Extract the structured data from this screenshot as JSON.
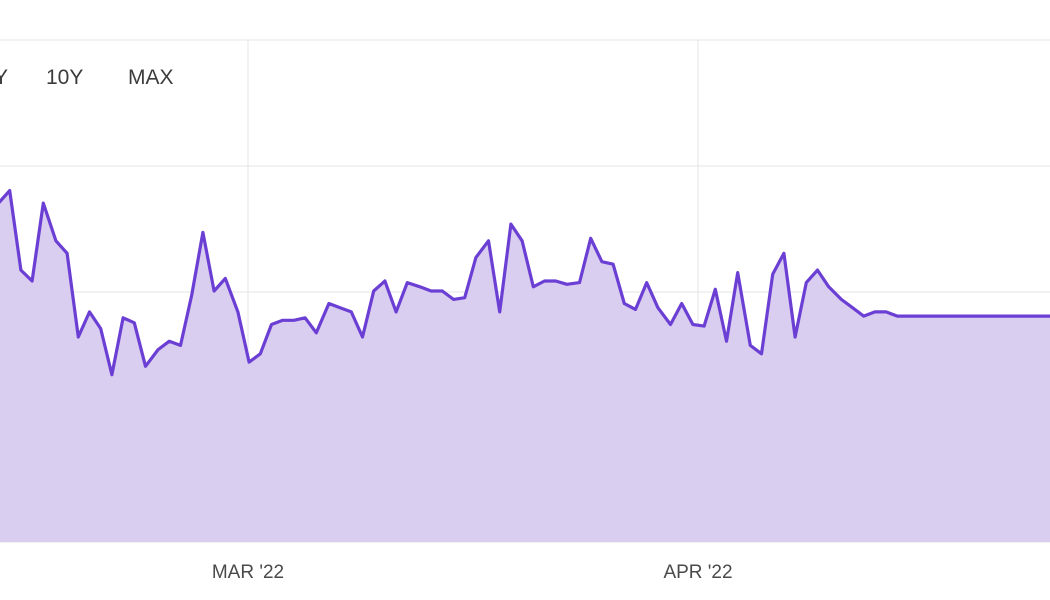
{
  "range_selector": {
    "options": [
      "Y",
      "10Y",
      "MAX"
    ]
  },
  "colors": {
    "line": "#6b3fd4",
    "fill": "#d9cdf0",
    "grid": "#e4e4e4",
    "tick_text": "#4a4a4a"
  },
  "chart_data": {
    "type": "area",
    "title": "",
    "xlabel": "",
    "ylabel": "",
    "x_ticks": [
      "MAR '22",
      "APR '22"
    ],
    "y_ticks_unlabeled": [
      1,
      2,
      3,
      4,
      5
    ],
    "grid": true,
    "legend": "none",
    "ylim": [
      0,
      6
    ],
    "series": [
      {
        "x": [
          0,
          0.08,
          0.16,
          0.24,
          0.32,
          0.41,
          0.49,
          0.57,
          0.65,
          0.73,
          0.81,
          0.89,
          0.97,
          1.05,
          1.14,
          1.22,
          1.3,
          1.38,
          1.46,
          1.54,
          1.62,
          1.71,
          1.79,
          1.87,
          1.95,
          2.03,
          2.11,
          2.19,
          2.27,
          2.36,
          2.44,
          2.52,
          2.6,
          2.68,
          2.76,
          2.84,
          2.92,
          3.01,
          3.09,
          3.17,
          3.25,
          3.33,
          3.41,
          3.5,
          3.58,
          3.66,
          3.74,
          3.82,
          3.9,
          3.98,
          4.06,
          4.15,
          4.23,
          4.31,
          4.39,
          4.47,
          4.55,
          4.63,
          4.71,
          4.8,
          4.88,
          4.96,
          5.04,
          5.12,
          5.2,
          5.28,
          5.37,
          5.45,
          5.53,
          5.61,
          5.69,
          5.77,
          5.85,
          5.93,
          6.02,
          6.1,
          6.18,
          6.26,
          6.34,
          6.42,
          6.5,
          6.59,
          6.67,
          6.75,
          6.83,
          6.91,
          6.99,
          7.07,
          7.15,
          7.24,
          7.32,
          7.4,
          7.48,
          7.56
        ],
        "values": [
          4.05,
          4.2,
          3.25,
          3.12,
          4.05,
          3.6,
          3.45,
          2.45,
          2.75,
          2.55,
          2.0,
          2.68,
          2.62,
          2.1,
          2.3,
          2.4,
          2.35,
          2.95,
          3.7,
          3.0,
          3.15,
          2.75,
          2.15,
          2.25,
          2.6,
          2.65,
          2.65,
          2.68,
          2.5,
          2.85,
          2.8,
          2.75,
          2.45,
          3.0,
          3.12,
          2.75,
          3.1,
          3.05,
          3.0,
          3.0,
          2.9,
          2.92,
          3.4,
          3.6,
          2.75,
          3.8,
          3.6,
          3.05,
          3.12,
          3.12,
          3.08,
          3.1,
          3.63,
          3.35,
          3.32,
          2.85,
          2.78,
          3.1,
          2.8,
          2.6,
          2.85,
          2.6,
          2.58,
          3.02,
          2.4,
          3.22,
          2.35,
          2.25,
          3.2,
          3.45,
          2.45,
          3.1,
          3.25,
          3.05,
          2.9,
          2.8,
          2.7,
          2.75,
          2.75,
          2.7,
          2.7,
          2.7,
          2.7,
          2.7,
          2.7,
          2.7,
          2.7,
          2.7,
          2.7,
          2.7,
          2.7,
          2.7,
          2.7,
          2.7
        ]
      }
    ]
  }
}
